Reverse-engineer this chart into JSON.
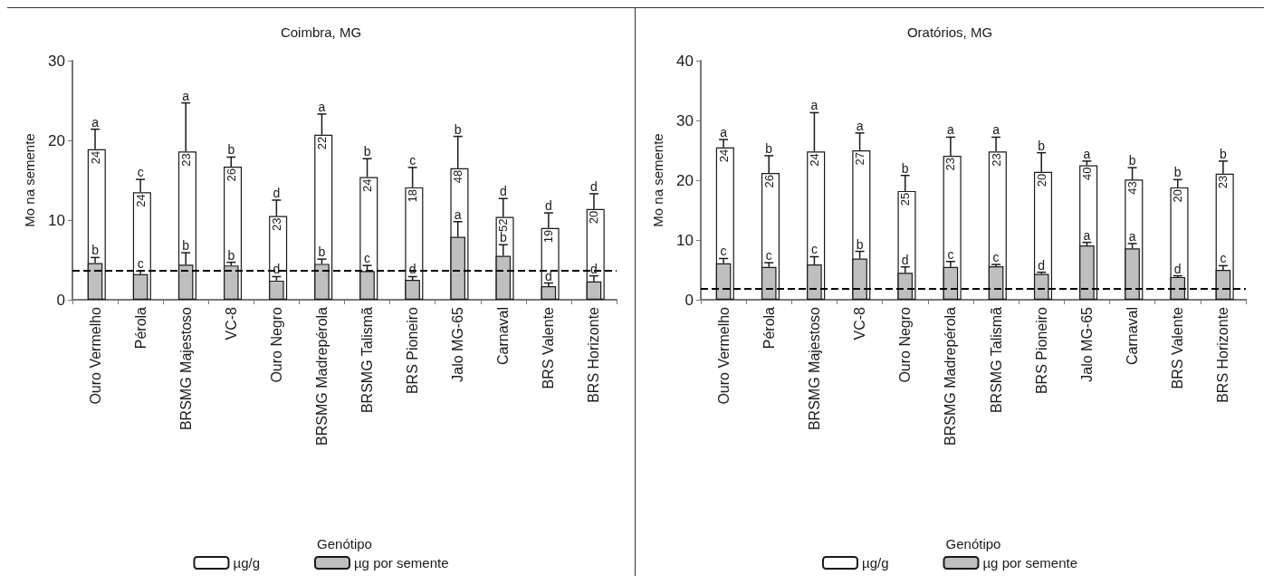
{
  "chart_data": [
    {
      "type": "bar",
      "title": "Coimbra, MG",
      "xlabel": "Genótipo",
      "ylabel": "Mo na semente",
      "categories": [
        "Ouro Vermelho",
        "Pérola",
        "BRSMG Majestoso",
        "VC-8",
        "Ouro Negro",
        "BRSMG Madrepérola",
        "BRSMG Talismã",
        "BRS Pioneiro",
        "Jalo MG-65",
        "Carnaval",
        "BRS Valente",
        "BRS Horizonte"
      ],
      "series": [
        {
          "name": "µg/g",
          "color": "#ffffff",
          "values": [
            18.9,
            13.5,
            18.6,
            16.7,
            10.5,
            20.7,
            15.4,
            14.1,
            16.5,
            10.4,
            9.0,
            11.4
          ],
          "errors": [
            [
              18.9,
              21.4
            ],
            [
              13.5,
              15.1
            ],
            [
              18.6,
              24.7
            ],
            [
              16.7,
              17.9
            ],
            [
              10.5,
              12.5
            ],
            [
              20.7,
              23.3
            ],
            [
              15.4,
              17.7
            ],
            [
              14.1,
              16.6
            ],
            [
              16.5,
              20.5
            ],
            [
              10.4,
              12.7
            ],
            [
              9.0,
              10.9
            ],
            [
              11.4,
              13.3
            ]
          ]
        },
        {
          "name": "µg por semente",
          "color": "#bfbfbf",
          "values": [
            4.6,
            3.2,
            4.4,
            4.3,
            2.4,
            4.5,
            3.6,
            2.5,
            7.9,
            5.5,
            1.7,
            2.3
          ],
          "errors": [
            [
              4.6,
              5.3
            ],
            [
              3.2,
              3.6
            ],
            [
              4.4,
              5.9
            ],
            [
              4.3,
              4.7
            ],
            [
              2.4,
              2.9
            ],
            [
              4.5,
              5.1
            ],
            [
              3.6,
              4.3
            ],
            [
              2.5,
              2.9
            ],
            [
              7.9,
              9.8
            ],
            [
              5.5,
              6.9
            ],
            [
              1.7,
              2.1
            ],
            [
              2.3,
              3.0
            ]
          ]
        }
      ],
      "ylim": [
        0,
        30
      ],
      "yticks": [
        0,
        10,
        20,
        30
      ],
      "grid": false,
      "legend": "bottom",
      "ref_lines": [
        {
          "axis": "y",
          "value": 3.7,
          "color": "#000000",
          "line_style": "dashed"
        }
      ],
      "annotations": [
        {
          "text": "a",
          "x": "Ouro Vermelho",
          "y": 21.4
        },
        {
          "text": "c",
          "x": "Pérola",
          "y": 15.1
        },
        {
          "text": "a",
          "x": "BRSMG Majestoso",
          "y": 24.7
        },
        {
          "text": "b",
          "x": "VC-8",
          "y": 17.9
        },
        {
          "text": "d",
          "x": "Ouro Negro",
          "y": 12.5
        },
        {
          "text": "a",
          "x": "BRSMG Madrepérola",
          "y": 23.3
        },
        {
          "text": "b",
          "x": "BRSMG Talismã",
          "y": 17.7
        },
        {
          "text": "c",
          "x": "BRS Pioneiro",
          "y": 16.6
        },
        {
          "text": "b",
          "x": "Jalo MG-65",
          "y": 20.5
        },
        {
          "text": "d",
          "x": "Carnaval",
          "y": 12.7
        },
        {
          "text": "d",
          "x": "BRS Valente",
          "y": 10.9
        },
        {
          "text": "d",
          "x": "BRS Horizonte",
          "y": 13.3
        },
        {
          "text": "24",
          "x": "Ouro Vermelho",
          "y": 18.9
        },
        {
          "text": "24",
          "x": "Pérola",
          "y": 13.5
        },
        {
          "text": "23",
          "x": "BRSMG Majestoso",
          "y": 18.6
        },
        {
          "text": "26",
          "x": "VC-8",
          "y": 16.7
        },
        {
          "text": "23",
          "x": "Ouro Negro",
          "y": 10.5
        },
        {
          "text": "22",
          "x": "BRSMG Madrepérola",
          "y": 20.7
        },
        {
          "text": "24",
          "x": "BRSMG Talismã",
          "y": 15.4
        },
        {
          "text": "18",
          "x": "BRS Pioneiro",
          "y": 14.1
        },
        {
          "text": "48",
          "x": "Jalo MG-65",
          "y": 16.5
        },
        {
          "text": "52",
          "x": "Carnaval",
          "y": 10.4
        },
        {
          "text": "19",
          "x": "BRS Valente",
          "y": 9.0
        },
        {
          "text": "20",
          "x": "BRS Horizonte",
          "y": 11.4
        },
        {
          "text": "b",
          "x": "Ouro Vermelho",
          "y": 5.3
        },
        {
          "text": "c",
          "x": "Pérola",
          "y": 3.6
        },
        {
          "text": "b",
          "x": "BRSMG Majestoso",
          "y": 5.9
        },
        {
          "text": "b",
          "x": "VC-8",
          "y": 4.7
        },
        {
          "text": "d",
          "x": "Ouro Negro",
          "y": 2.9
        },
        {
          "text": "b",
          "x": "BRSMG Madrepérola",
          "y": 5.1
        },
        {
          "text": "c",
          "x": "BRSMG Talismã",
          "y": 4.3
        },
        {
          "text": "d",
          "x": "BRS Pioneiro",
          "y": 2.9
        },
        {
          "text": "a",
          "x": "Jalo MG-65",
          "y": 9.8
        },
        {
          "text": "b",
          "x": "Carnaval",
          "y": 6.9
        },
        {
          "text": "d",
          "x": "BRS Valente",
          "y": 2.1
        },
        {
          "text": "d",
          "x": "BRS Horizonte",
          "y": 3.0
        }
      ]
    },
    {
      "type": "bar",
      "title": "Oratórios, MG",
      "xlabel": "Genótipo",
      "ylabel": "Mo na semente",
      "categories": [
        "Ouro Vermelho",
        "Pérola",
        "BRSMG Majestoso",
        "VC-8",
        "Ouro Negro",
        "BRSMG Madrepérola",
        "BRSMG Talismã",
        "BRS Pioneiro",
        "Jalo MG-65",
        "Carnaval",
        "BRS Valente",
        "BRS Horizonte"
      ],
      "series": [
        {
          "name": "µg/g",
          "color": "#ffffff",
          "values": [
            25.5,
            21.2,
            24.8,
            25.0,
            18.2,
            24.1,
            24.8,
            21.4,
            22.5,
            20.1,
            18.8,
            21.1
          ],
          "errors": [
            [
              25.5,
              26.8
            ],
            [
              21.2,
              24.1
            ],
            [
              24.8,
              31.3
            ],
            [
              25.0,
              27.9
            ],
            [
              18.2,
              20.8
            ],
            [
              24.1,
              27.2
            ],
            [
              24.8,
              27.2
            ],
            [
              21.4,
              24.6
            ],
            [
              22.5,
              23.2
            ],
            [
              20.1,
              22.1
            ],
            [
              18.8,
              20.1
            ],
            [
              21.1,
              23.2
            ]
          ]
        },
        {
          "name": "µg por semente",
          "color": "#bfbfbf",
          "values": [
            6.1,
            5.5,
            5.9,
            6.9,
            4.5,
            5.5,
            5.6,
            4.3,
            9.1,
            8.6,
            3.8,
            5.0
          ],
          "errors": [
            [
              6.1,
              6.9
            ],
            [
              5.5,
              6.2
            ],
            [
              5.9,
              7.2
            ],
            [
              6.9,
              8.1
            ],
            [
              4.5,
              5.5
            ],
            [
              5.5,
              6.4
            ],
            [
              5.6,
              5.9
            ],
            [
              4.3,
              4.6
            ],
            [
              9.1,
              9.6
            ],
            [
              8.6,
              9.4
            ],
            [
              3.8,
              4.0
            ],
            [
              5.0,
              5.7
            ]
          ]
        }
      ],
      "ylim": [
        0,
        40
      ],
      "yticks": [
        0,
        10,
        20,
        30,
        40
      ],
      "grid": false,
      "legend": "bottom",
      "ref_lines": [
        {
          "axis": "y",
          "value": 1.9,
          "color": "#000000",
          "line_style": "dashed"
        }
      ],
      "annotations": [
        {
          "text": "a",
          "x": "Ouro Vermelho",
          "y": 26.8
        },
        {
          "text": "b",
          "x": "Pérola",
          "y": 24.1
        },
        {
          "text": "a",
          "x": "BRSMG Majestoso",
          "y": 31.3
        },
        {
          "text": "a",
          "x": "VC-8",
          "y": 27.9
        },
        {
          "text": "b",
          "x": "Ouro Negro",
          "y": 20.8
        },
        {
          "text": "a",
          "x": "BRSMG Madrepérola",
          "y": 27.2
        },
        {
          "text": "a",
          "x": "BRSMG Talismã",
          "y": 27.2
        },
        {
          "text": "b",
          "x": "BRS Pioneiro",
          "y": 24.6
        },
        {
          "text": "a",
          "x": "Jalo MG-65",
          "y": 23.2
        },
        {
          "text": "b",
          "x": "Carnaval",
          "y": 22.1
        },
        {
          "text": "b",
          "x": "BRS Valente",
          "y": 20.1
        },
        {
          "text": "b",
          "x": "BRS Horizonte",
          "y": 23.2
        },
        {
          "text": "24",
          "x": "Ouro Vermelho",
          "y": 25.5
        },
        {
          "text": "26",
          "x": "Pérola",
          "y": 21.2
        },
        {
          "text": "24",
          "x": "BRSMG Majestoso",
          "y": 24.8
        },
        {
          "text": "27",
          "x": "VC-8",
          "y": 25.0
        },
        {
          "text": "25",
          "x": "Ouro Negro",
          "y": 18.2
        },
        {
          "text": "23",
          "x": "BRSMG Madrepérola",
          "y": 24.1
        },
        {
          "text": "23",
          "x": "BRSMG Talismã",
          "y": 24.8
        },
        {
          "text": "20",
          "x": "BRS Pioneiro",
          "y": 21.4
        },
        {
          "text": "40",
          "x": "Jalo MG-65",
          "y": 22.5
        },
        {
          "text": "43",
          "x": "Carnaval",
          "y": 20.1
        },
        {
          "text": "20",
          "x": "BRS Valente",
          "y": 18.8
        },
        {
          "text": "23",
          "x": "BRS Horizonte",
          "y": 21.1
        },
        {
          "text": "c",
          "x": "Ouro Vermelho",
          "y": 6.9
        },
        {
          "text": "c",
          "x": "Pérola",
          "y": 6.2
        },
        {
          "text": "c",
          "x": "BRSMG Majestoso",
          "y": 7.2
        },
        {
          "text": "b",
          "x": "VC-8",
          "y": 8.1
        },
        {
          "text": "d",
          "x": "Ouro Negro",
          "y": 5.5
        },
        {
          "text": "c",
          "x": "BRSMG Madrepérola",
          "y": 6.4
        },
        {
          "text": "c",
          "x": "BRSMG Talismã",
          "y": 5.9
        },
        {
          "text": "d",
          "x": "BRS Pioneiro",
          "y": 4.6
        },
        {
          "text": "a",
          "x": "Jalo MG-65",
          "y": 9.6
        },
        {
          "text": "a",
          "x": "Carnaval",
          "y": 9.4
        },
        {
          "text": "d",
          "x": "BRS Valente",
          "y": 4.0
        },
        {
          "text": "c",
          "x": "BRS Horizonte",
          "y": 5.7
        }
      ]
    }
  ]
}
